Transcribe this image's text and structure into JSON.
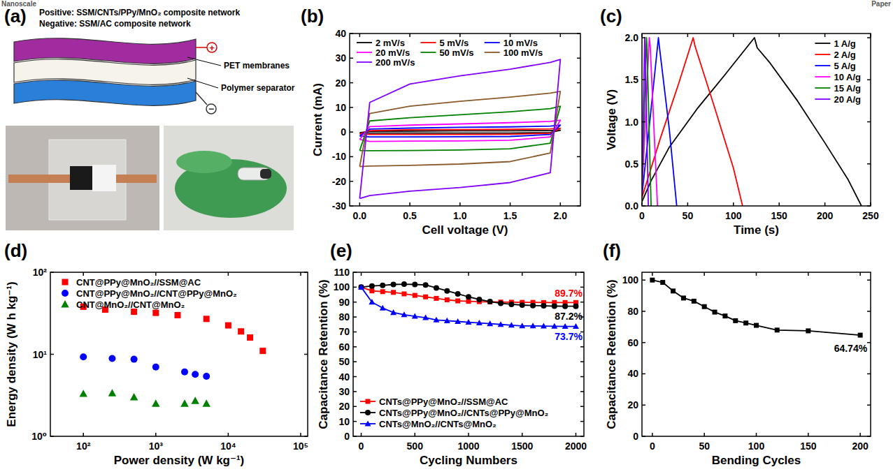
{
  "header": {
    "journal": "Nanoscale",
    "section": "Paper"
  },
  "panel_letters": [
    "(a)",
    "(b)",
    "(c)",
    "(d)",
    "(e)",
    "(f)"
  ],
  "diagram": {
    "positive": "Positive: SSM/CNTs/PPy/MnO₂ composite network",
    "negative": "Negative: SSM/AC composite network",
    "pet_label": "PET membranes",
    "separator_label": "Polymer separator",
    "plus": "+",
    "minus": "−"
  },
  "chart_data": [
    {
      "type": "line",
      "xlabel": "Cell voltage (V)",
      "ylabel": "Current (mA)",
      "xlim": [
        -0.1,
        2.2
      ],
      "ylim": [
        -30,
        40
      ],
      "xticks": [
        {
          "value": 0,
          "label": "0.0"
        },
        {
          "value": 0.5,
          "label": "0.5"
        },
        {
          "value": 1,
          "label": "1.0"
        },
        {
          "value": 1.5,
          "label": "1.5"
        },
        {
          "value": 2,
          "label": "2.0"
        }
      ],
      "yticks": [
        -30,
        -20,
        -10,
        0,
        10,
        20,
        30,
        40
      ],
      "grid": false,
      "legend": "upper left",
      "x": [
        0,
        0.1,
        0.5,
        1.0,
        1.5,
        1.9,
        2.0,
        1.9,
        1.5,
        1.0,
        0.5,
        0.1,
        0
      ],
      "series": [
        {
          "name": "2 mV/s",
          "color": "#000000",
          "line_style": "solid",
          "values": [
            -0.3,
            0.3,
            0.4,
            0.5,
            0.5,
            0.6,
            0.7,
            -0.2,
            -0.4,
            -0.4,
            -0.4,
            -0.4,
            -0.3
          ]
        },
        {
          "name": "5 mV/s",
          "color": "#ff0000",
          "line_style": "solid",
          "values": [
            -0.8,
            0.6,
            0.9,
            1.0,
            1.1,
            1.3,
            1.5,
            -0.5,
            -0.9,
            -1.0,
            -1.0,
            -1.0,
            -0.8
          ]
        },
        {
          "name": "10 mV/s",
          "color": "#0000ff",
          "line_style": "solid",
          "values": [
            -1.6,
            1.2,
            1.6,
            1.9,
            2.1,
            2.4,
            2.8,
            -1.0,
            -1.8,
            -1.9,
            -2.0,
            -2.0,
            -1.6
          ]
        },
        {
          "name": "20 mV/s",
          "color": "#ff00ff",
          "line_style": "solid",
          "values": [
            -3.0,
            2.2,
            2.8,
            3.3,
            3.8,
            4.3,
            4.8,
            -2.0,
            -3.3,
            -3.6,
            -3.7,
            -3.8,
            -3.0
          ]
        },
        {
          "name": "50 mV/s",
          "color": "#008000",
          "line_style": "solid",
          "values": [
            -7.5,
            4.5,
            5.8,
            7.0,
            8.2,
            9.5,
            10.5,
            -4.5,
            -6.8,
            -7.3,
            -7.5,
            -7.6,
            -7.5
          ]
        },
        {
          "name": "100 mV/s",
          "color": "#8b5a2b",
          "line_style": "solid",
          "values": [
            -14.0,
            7.5,
            10.5,
            12.5,
            14.2,
            15.8,
            16.5,
            -8.5,
            -12.0,
            -13.0,
            -13.5,
            -13.8,
            -14.0
          ]
        },
        {
          "name": "200 mV/s",
          "color": "#8000ff",
          "line_style": "solid",
          "values": [
            -27.0,
            12.0,
            19.5,
            22.8,
            25.5,
            28.3,
            29.5,
            -16.5,
            -20.5,
            -22.5,
            -24.0,
            -25.8,
            -27.0
          ]
        }
      ]
    },
    {
      "type": "line",
      "xlabel": "Time (s)",
      "ylabel": "Voltage (V)",
      "xlim": [
        0,
        250
      ],
      "ylim": [
        0,
        2.05
      ],
      "xticks": [
        0,
        50,
        100,
        150,
        200,
        250
      ],
      "yticks": [
        {
          "value": 0,
          "label": "0.0"
        },
        {
          "value": 0.5,
          "label": "0.5"
        },
        {
          "value": 1,
          "label": "1.0"
        },
        {
          "value": 1.5,
          "label": "1.5"
        },
        {
          "value": 2,
          "label": "2.0"
        }
      ],
      "grid": false,
      "legend": "upper right",
      "series": [
        {
          "name": "1 A/g",
          "color": "#000000",
          "line_style": "solid",
          "x": [
            0,
            10,
            30,
            60,
            90,
            123,
            126,
            140,
            170,
            200,
            225,
            240
          ],
          "values": [
            0.05,
            0.3,
            0.7,
            1.15,
            1.55,
            2.0,
            1.88,
            1.7,
            1.25,
            0.75,
            0.32,
            0
          ]
        },
        {
          "name": "2 A/g",
          "color": "#ff0000",
          "line_style": "solid",
          "x": [
            0,
            20,
            40,
            56,
            58,
            80,
            100,
            110
          ],
          "values": [
            0.1,
            0.8,
            1.45,
            2.0,
            1.9,
            1.15,
            0.45,
            0
          ]
        },
        {
          "name": "5 A/g",
          "color": "#0000ff",
          "line_style": "solid",
          "x": [
            0,
            9,
            18,
            19,
            30,
            38
          ],
          "values": [
            0.12,
            1.05,
            2.0,
            1.9,
            0.9,
            0
          ]
        },
        {
          "name": "10 A/g",
          "color": "#ff00ff",
          "line_style": "solid",
          "x": [
            0,
            8,
            9,
            17
          ],
          "values": [
            0.15,
            2.0,
            1.9,
            0
          ]
        },
        {
          "name": "15 A/g",
          "color": "#008000",
          "line_style": "solid",
          "x": [
            0,
            5,
            5.5,
            10
          ],
          "values": [
            0.2,
            2.0,
            1.9,
            0
          ]
        },
        {
          "name": "20 A/g",
          "color": "#8000ff",
          "line_style": "solid",
          "x": [
            0,
            3,
            3.5,
            7
          ],
          "values": [
            0.25,
            2.0,
            1.9,
            0
          ]
        }
      ]
    },
    {
      "type": "scatter",
      "xlabel": "Power density (W kg⁻¹)",
      "ylabel": "Energy density (W h kg⁻¹)",
      "log": true,
      "xlim": [
        35,
        125000
      ],
      "ylim": [
        1,
        100
      ],
      "xticks": [
        {
          "value": 100,
          "label": "10²"
        },
        {
          "value": 1000,
          "label": "10³"
        },
        {
          "value": 10000,
          "label": "10⁴"
        },
        {
          "value": 100000,
          "label": "10⁵"
        }
      ],
      "yticks": [
        {
          "value": 1,
          "label": "10⁰"
        },
        {
          "value": 10,
          "label": "10¹"
        },
        {
          "value": 100,
          "label": "10²"
        }
      ],
      "grid": false,
      "legend": "upper left",
      "series": [
        {
          "name": "CNT@PPy@MnO₂//SSM@AC",
          "color": "#ff0000",
          "marker": "square",
          "x": [
            100,
            200,
            500,
            1000,
            2000,
            5000,
            10000,
            15000,
            20000,
            30000
          ],
          "values": [
            38,
            35,
            33,
            32,
            30,
            27,
            22.5,
            19,
            16,
            11
          ]
        },
        {
          "name": "CNT@PPy@MnO₂//CNT@PPy@MnO₂",
          "color": "#0000ff",
          "marker": "circle",
          "x": [
            100,
            250,
            500,
            1000,
            2500,
            3500,
            5000
          ],
          "values": [
            9.3,
            8.9,
            8.7,
            7,
            6.1,
            5.7,
            5.4
          ]
        },
        {
          "name": "CNT@MnO₂//CNT@MnO₂",
          "color": "#008000",
          "marker": "triangle",
          "x": [
            100,
            250,
            500,
            1000,
            2500,
            3500,
            5000
          ],
          "values": [
            3.3,
            3.35,
            3.0,
            2.5,
            2.5,
            2.7,
            2.5
          ]
        }
      ]
    },
    {
      "type": "line",
      "xlabel": "Cycling Numbers",
      "ylabel": "Capacitance Retention (%)",
      "xlim": [
        -75,
        2075
      ],
      "ylim": [
        0,
        110
      ],
      "xticks": [
        0,
        500,
        1000,
        1500,
        2000
      ],
      "yticks": [
        0,
        10,
        20,
        30,
        40,
        50,
        60,
        70,
        80,
        90,
        100,
        110
      ],
      "grid": false,
      "legend": "lower left",
      "x": [
        0,
        100,
        200,
        300,
        400,
        500,
        600,
        700,
        800,
        900,
        1000,
        1100,
        1200,
        1300,
        1400,
        1500,
        1600,
        1700,
        1800,
        1900,
        2000
      ],
      "series": [
        {
          "name": "CNTs@PPy@MnO₂//SSM@AC",
          "color": "#ff0000",
          "marker": "square",
          "line_style": "solid",
          "end_label": "89.7%",
          "values": [
            100,
            97.5,
            97,
            96.5,
            95.5,
            94.5,
            93.5,
            92.5,
            91.5,
            90.8,
            90.5,
            90.3,
            90.1,
            90,
            89.9,
            89.8,
            89.8,
            89.7,
            89.7,
            89.7,
            89.7
          ]
        },
        {
          "name": "CNTs@PPy@MnO₂//CNTs@PPy@MnO₂",
          "color": "#000000",
          "marker": "circle",
          "line_style": "solid",
          "end_label": "87.2%",
          "values": [
            100,
            100.8,
            101.2,
            101.8,
            102,
            101.8,
            101.5,
            99.5,
            97.5,
            95.5,
            93.5,
            91.8,
            90.3,
            89.2,
            88.5,
            88,
            87.7,
            87.5,
            87.3,
            87.2,
            87.2
          ]
        },
        {
          "name": "CNTs@MnO₂//CNTs@MnO₂",
          "color": "#0000ff",
          "marker": "triangle",
          "line_style": "solid",
          "end_label": "73.7%",
          "values": [
            100,
            90,
            86,
            83,
            81.5,
            80.5,
            79.5,
            78,
            77.5,
            77,
            76.5,
            76,
            75.5,
            75,
            74.5,
            74,
            74,
            73.9,
            73.8,
            73.7,
            73.7
          ]
        }
      ]
    },
    {
      "type": "line",
      "xlabel": "Bending Cycles",
      "ylabel": "Capacitance Retention (%)",
      "xlim": [
        -10,
        210
      ],
      "ylim": [
        0,
        105
      ],
      "xticks": [
        0,
        50,
        100,
        150,
        200
      ],
      "yticks": [
        0,
        20,
        40,
        60,
        80,
        100
      ],
      "grid": false,
      "series": [
        {
          "name": "",
          "color": "#000000",
          "marker": "square",
          "line_style": "solid",
          "end_label": "64.74%",
          "x": [
            0,
            10,
            20,
            30,
            40,
            50,
            60,
            70,
            80,
            90,
            100,
            120,
            150,
            200
          ],
          "values": [
            100,
            98.5,
            93,
            88.5,
            86.5,
            83,
            79.5,
            77,
            74,
            72.5,
            71,
            68,
            67.5,
            64.74
          ]
        }
      ]
    }
  ]
}
